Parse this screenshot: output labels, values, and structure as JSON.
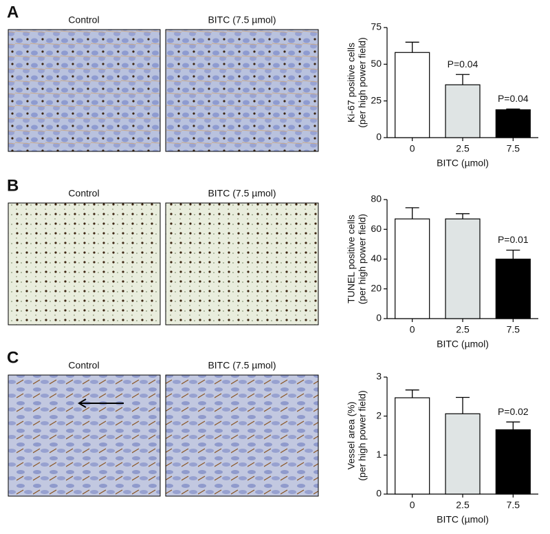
{
  "panels": [
    {
      "letter": "A",
      "captions": [
        "Control",
        "BITC (7.5 µmol)"
      ]
    },
    {
      "letter": "B",
      "captions": [
        "Control",
        "BITC (7.5 µmol)"
      ]
    },
    {
      "letter": "C",
      "captions": [
        "Control",
        "BITC (7.5 µmol)"
      ]
    }
  ],
  "chart_data": [
    {
      "type": "bar",
      "categories": [
        "0",
        "2.5",
        "7.5"
      ],
      "values": [
        58,
        36,
        19
      ],
      "errors": [
        7,
        7,
        0.5
      ],
      "colors": [
        "#ffffff",
        "#dfe4e4",
        "#000000"
      ],
      "annotations": [
        null,
        "P=0.04",
        "P=0.04"
      ],
      "ylabel": [
        "Ki-67 positive cells",
        "(per high power field)"
      ],
      "xlabel": "BITC (µmol)",
      "ylim": [
        0,
        75
      ],
      "yticks": [
        0,
        25,
        50,
        75
      ]
    },
    {
      "type": "bar",
      "categories": [
        "0",
        "2.5",
        "7.5"
      ],
      "values": [
        67,
        67,
        40
      ],
      "errors": [
        7.5,
        3.5,
        6
      ],
      "colors": [
        "#ffffff",
        "#dfe4e4",
        "#000000"
      ],
      "annotations": [
        null,
        null,
        "P=0.01"
      ],
      "ylabel": [
        "TUNEL positive cells",
        "(per high power field)"
      ],
      "xlabel": "BITC (µmol)",
      "ylim": [
        0,
        80
      ],
      "yticks": [
        0,
        20,
        40,
        60,
        80
      ]
    },
    {
      "type": "bar",
      "categories": [
        "0",
        "2.5",
        "7.5"
      ],
      "values": [
        2.47,
        2.06,
        1.65
      ],
      "errors": [
        0.2,
        0.42,
        0.2
      ],
      "colors": [
        "#ffffff",
        "#dfe4e4",
        "#000000"
      ],
      "annotations": [
        null,
        null,
        "P=0.02"
      ],
      "ylabel": [
        "Vessel area (%)",
        "(per high power field)"
      ],
      "xlabel": "BITC (µmol)",
      "ylim": [
        0,
        3
      ],
      "yticks": [
        0,
        1,
        2,
        3
      ]
    }
  ]
}
